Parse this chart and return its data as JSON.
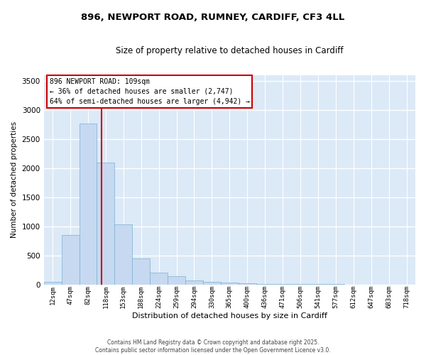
{
  "title1": "896, NEWPORT ROAD, RUMNEY, CARDIFF, CF3 4LL",
  "title2": "Size of property relative to detached houses in Cardiff",
  "xlabel": "Distribution of detached houses by size in Cardiff",
  "ylabel": "Number of detached properties",
  "bin_labels": [
    "12sqm",
    "47sqm",
    "82sqm",
    "118sqm",
    "153sqm",
    "188sqm",
    "224sqm",
    "259sqm",
    "294sqm",
    "330sqm",
    "365sqm",
    "400sqm",
    "436sqm",
    "471sqm",
    "506sqm",
    "541sqm",
    "577sqm",
    "612sqm",
    "647sqm",
    "683sqm",
    "718sqm"
  ],
  "bin_values": [
    50,
    850,
    2760,
    2100,
    1030,
    450,
    200,
    145,
    65,
    45,
    30,
    20,
    15,
    10,
    7,
    5,
    4,
    3,
    2,
    2,
    1
  ],
  "bar_color": "#c6d9f0",
  "bar_edge_color": "#7ab0d4",
  "vline_color": "#cc0000",
  "vline_pos": 2.75,
  "ylim": [
    0,
    3600
  ],
  "yticks": [
    0,
    500,
    1000,
    1500,
    2000,
    2500,
    3000,
    3500
  ],
  "annotation_line1": "896 NEWPORT ROAD: 109sqm",
  "annotation_line2": "← 36% of detached houses are smaller (2,747)",
  "annotation_line3": "64% of semi-detached houses are larger (4,942) →",
  "annotation_box_edgecolor": "#cc0000",
  "footer1": "Contains HM Land Registry data © Crown copyright and database right 2025.",
  "footer2": "Contains public sector information licensed under the Open Government Licence v3.0.",
  "bg_color": "#dce9f7",
  "grid_color": "#ffffff"
}
